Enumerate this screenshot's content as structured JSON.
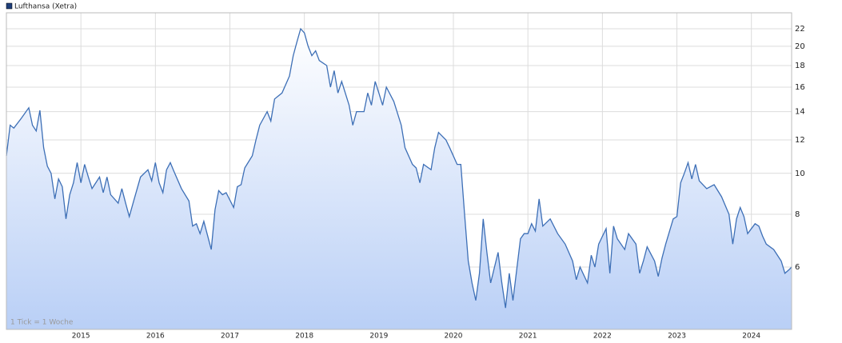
{
  "chart_data": {
    "type": "line",
    "annotation": "1 Tick = 1 Woche",
    "x": [
      2014.0,
      2014.05,
      2014.1,
      2014.2,
      2014.3,
      2014.35,
      2014.4,
      2014.45,
      2014.5,
      2014.55,
      2014.6,
      2014.65,
      2014.7,
      2014.75,
      2014.8,
      2014.85,
      2014.9,
      2014.95,
      2015.0,
      2015.05,
      2015.1,
      2015.15,
      2015.25,
      2015.3,
      2015.35,
      2015.4,
      2015.5,
      2015.55,
      2015.6,
      2015.65,
      2015.7,
      2015.8,
      2015.9,
      2015.95,
      2016.0,
      2016.05,
      2016.1,
      2016.15,
      2016.2,
      2016.25,
      2016.35,
      2016.45,
      2016.5,
      2016.55,
      2016.6,
      2016.65,
      2016.75,
      2016.8,
      2016.85,
      2016.9,
      2016.95,
      2017.05,
      2017.1,
      2017.15,
      2017.2,
      2017.3,
      2017.35,
      2017.4,
      2017.5,
      2017.55,
      2017.6,
      2017.7,
      2017.8,
      2017.85,
      2017.9,
      2017.95,
      2018.0,
      2018.05,
      2018.1,
      2018.15,
      2018.2,
      2018.3,
      2018.35,
      2018.4,
      2018.45,
      2018.5,
      2018.6,
      2018.65,
      2018.7,
      2018.8,
      2018.85,
      2018.9,
      2018.95,
      2019.0,
      2019.05,
      2019.1,
      2019.2,
      2019.3,
      2019.35,
      2019.45,
      2019.5,
      2019.55,
      2019.6,
      2019.7,
      2019.75,
      2019.8,
      2019.9,
      2019.95,
      2020.05,
      2020.1,
      2020.15,
      2020.2,
      2020.25,
      2020.3,
      2020.35,
      2020.4,
      2020.45,
      2020.5,
      2020.6,
      2020.65,
      2020.7,
      2020.75,
      2020.8,
      2020.9,
      2020.95,
      2021.0,
      2021.05,
      2021.1,
      2021.15,
      2021.2,
      2021.3,
      2021.4,
      2021.5,
      2021.6,
      2021.65,
      2021.7,
      2021.8,
      2021.85,
      2021.9,
      2021.95,
      2022.05,
      2022.1,
      2022.15,
      2022.2,
      2022.3,
      2022.35,
      2022.45,
      2022.5,
      2022.55,
      2022.6,
      2022.7,
      2022.75,
      2022.8,
      2022.85,
      2022.95,
      2023.0,
      2023.05,
      2023.1,
      2023.15,
      2023.2,
      2023.25,
      2023.3,
      2023.4,
      2023.5,
      2023.6,
      2023.7,
      2023.75,
      2023.8,
      2023.85,
      2023.9,
      2023.95,
      2024.05,
      2024.1,
      2024.15,
      2024.2,
      2024.3,
      2024.4,
      2024.45,
      2024.5,
      2024.54
    ],
    "series": [
      {
        "name": "Lufthansa (Xetra)",
        "color": "#3d6fb6",
        "values": [
          11,
          13,
          12.8,
          13.5,
          14.3,
          13,
          12.6,
          14.1,
          11.5,
          10.4,
          10,
          8.7,
          9.7,
          9.3,
          7.8,
          8.9,
          9.5,
          10.6,
          9.5,
          10.5,
          9.8,
          9.2,
          9.8,
          9.0,
          9.8,
          8.9,
          8.5,
          9.2,
          8.5,
          7.9,
          8.5,
          9.8,
          10.2,
          9.6,
          10.6,
          9.5,
          9.0,
          10.2,
          10.6,
          10.1,
          9.2,
          8.6,
          7.5,
          7.6,
          7.2,
          7.7,
          6.6,
          8.2,
          9.1,
          8.9,
          9.0,
          8.3,
          9.3,
          9.4,
          10.3,
          11,
          12,
          13,
          14,
          13.3,
          15,
          15.5,
          17,
          19,
          20.5,
          22,
          21.5,
          20,
          19,
          19.5,
          18.5,
          18,
          16,
          17.5,
          15.5,
          16.5,
          14.5,
          13,
          14,
          14,
          15.5,
          14.5,
          16.5,
          15.5,
          14.5,
          16,
          14.8,
          13,
          11.5,
          10.5,
          10.3,
          9.5,
          10.5,
          10.2,
          11.5,
          12.5,
          12,
          11.5,
          10.5,
          10.5,
          8,
          6.2,
          5.5,
          5,
          5.8,
          7.8,
          6.5,
          5.5,
          6.5,
          5.5,
          4.8,
          5.8,
          5,
          7,
          7.2,
          7.2,
          7.6,
          7.3,
          8.7,
          7.5,
          7.8,
          7.2,
          6.8,
          6.2,
          5.6,
          6,
          5.5,
          6.4,
          6,
          6.8,
          7.4,
          5.8,
          7.5,
          7.0,
          6.6,
          7.2,
          6.8,
          5.8,
          6.2,
          6.7,
          6.2,
          5.7,
          6.3,
          6.8,
          7.8,
          7.9,
          9.5,
          10,
          10.6,
          9.7,
          10.5,
          9.6,
          9.2,
          9.4,
          8.8,
          8.0,
          6.8,
          7.8,
          8.3,
          7.9,
          7.2,
          7.6,
          7.5,
          7.1,
          6.8,
          6.6,
          6.2,
          5.8,
          5.9,
          6
        ]
      }
    ],
    "xlim": [
      2014.0,
      2024.54
    ],
    "xticks": [
      2015,
      2016,
      2017,
      2018,
      2019,
      2020,
      2021,
      2022,
      2023,
      2024
    ],
    "ylim": [
      4.27,
      24
    ],
    "yticks": [
      6,
      8,
      10,
      12,
      14,
      16,
      18,
      20,
      22
    ],
    "log_scale": true,
    "grid": true,
    "legend": "top-left"
  }
}
